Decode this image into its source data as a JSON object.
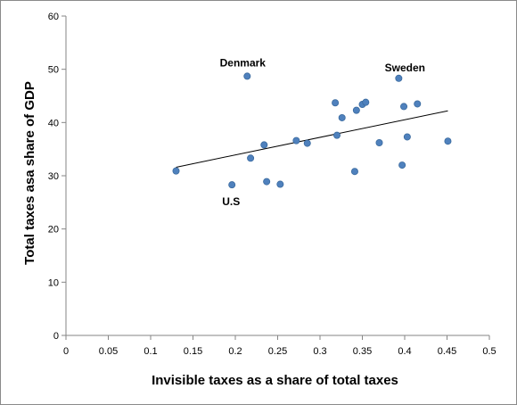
{
  "chart_data": {
    "type": "scatter",
    "title": "",
    "xlabel": "Invisible taxes as a share of total taxes",
    "ylabel": "Total taxes asa share of GDP",
    "xlim": [
      0,
      0.5
    ],
    "ylim": [
      0,
      60
    ],
    "x_ticks": [
      "0",
      "0.05",
      "0.1",
      "0.15",
      "0.2",
      "0.25",
      "0.3",
      "0.35",
      "0.4",
      "0.45",
      "0.5"
    ],
    "y_ticks": [
      "0",
      "10",
      "20",
      "30",
      "40",
      "50",
      "60"
    ],
    "grid": false,
    "legend": "none",
    "marker_color": "#4f81bd",
    "points": [
      {
        "x": 0.13,
        "y": 30.9
      },
      {
        "x": 0.196,
        "y": 28.3
      },
      {
        "x": 0.214,
        "y": 48.7
      },
      {
        "x": 0.218,
        "y": 33.3
      },
      {
        "x": 0.234,
        "y": 35.8
      },
      {
        "x": 0.237,
        "y": 28.9
      },
      {
        "x": 0.253,
        "y": 28.4
      },
      {
        "x": 0.272,
        "y": 36.6
      },
      {
        "x": 0.285,
        "y": 36.1
      },
      {
        "x": 0.318,
        "y": 43.7
      },
      {
        "x": 0.32,
        "y": 37.6
      },
      {
        "x": 0.326,
        "y": 40.9
      },
      {
        "x": 0.341,
        "y": 30.8
      },
      {
        "x": 0.343,
        "y": 42.3
      },
      {
        "x": 0.35,
        "y": 43.4
      },
      {
        "x": 0.354,
        "y": 43.8
      },
      {
        "x": 0.37,
        "y": 36.2
      },
      {
        "x": 0.393,
        "y": 48.3
      },
      {
        "x": 0.397,
        "y": 32.0
      },
      {
        "x": 0.399,
        "y": 43.0
      },
      {
        "x": 0.403,
        "y": 37.3
      },
      {
        "x": 0.415,
        "y": 43.5
      },
      {
        "x": 0.451,
        "y": 36.5
      }
    ],
    "trendline": {
      "x": [
        0.13,
        0.451
      ],
      "y": [
        31.6,
        42.2
      ]
    },
    "annotations": [
      {
        "text": "Denmark",
        "x": 0.214,
        "y": 48.7
      },
      {
        "text": "Sweden",
        "x": 0.393,
        "y": 48.3
      },
      {
        "text": "U.S",
        "x": 0.196,
        "y": 28.3
      }
    ]
  }
}
